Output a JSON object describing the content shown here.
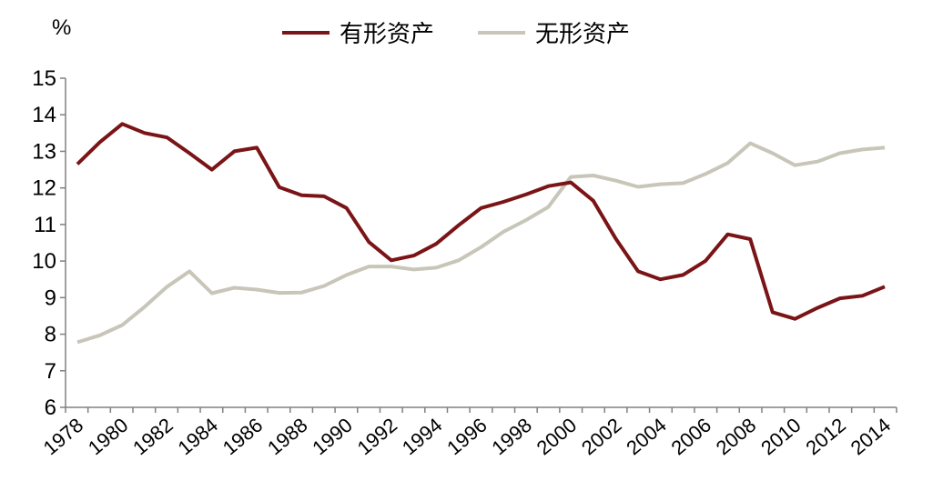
{
  "chart_data": {
    "type": "line",
    "title": "",
    "xlabel": "",
    "ylabel": "%",
    "ylim": [
      6,
      15
    ],
    "yticks": [
      6,
      7,
      8,
      9,
      10,
      11,
      12,
      13,
      14,
      15
    ],
    "x": [
      1978,
      1979,
      1980,
      1981,
      1982,
      1983,
      1984,
      1985,
      1986,
      1987,
      1988,
      1989,
      1990,
      1991,
      1992,
      1993,
      1994,
      1995,
      1996,
      1997,
      1998,
      1999,
      2000,
      2001,
      2002,
      2003,
      2004,
      2005,
      2006,
      2007,
      2008,
      2009,
      2010,
      2011,
      2012,
      2013,
      2014
    ],
    "xtick_labels": [
      "1978",
      "1980",
      "1982",
      "1984",
      "1986",
      "1988",
      "1990",
      "1992",
      "1994",
      "1996",
      "1998",
      "2000",
      "2002",
      "2004",
      "2006",
      "2008",
      "2010",
      "2012",
      "2014"
    ],
    "grid": false,
    "legend_position": "top",
    "series": [
      {
        "name": "有形资产",
        "color": "#7a1416",
        "values": [
          12.65,
          13.25,
          13.75,
          13.5,
          13.38,
          12.95,
          12.5,
          13.0,
          13.1,
          12.02,
          11.8,
          11.77,
          11.45,
          10.52,
          10.02,
          10.15,
          10.47,
          10.98,
          11.45,
          11.62,
          11.82,
          12.05,
          12.15,
          11.65,
          10.62,
          9.72,
          9.5,
          9.62,
          10.0,
          10.73,
          10.6,
          8.6,
          8.42,
          8.72,
          8.98,
          9.05,
          9.3
        ]
      },
      {
        "name": "无形资产",
        "color": "#c8c6b8",
        "values": [
          7.78,
          7.97,
          8.25,
          8.75,
          9.3,
          9.72,
          9.12,
          9.27,
          9.22,
          9.13,
          9.14,
          9.32,
          9.62,
          9.85,
          9.85,
          9.77,
          9.82,
          10.02,
          10.38,
          10.8,
          11.12,
          11.48,
          12.3,
          12.34,
          12.2,
          12.03,
          12.1,
          12.13,
          12.38,
          12.68,
          13.22,
          12.95,
          12.62,
          12.72,
          12.95,
          13.05,
          13.1
        ]
      }
    ]
  }
}
